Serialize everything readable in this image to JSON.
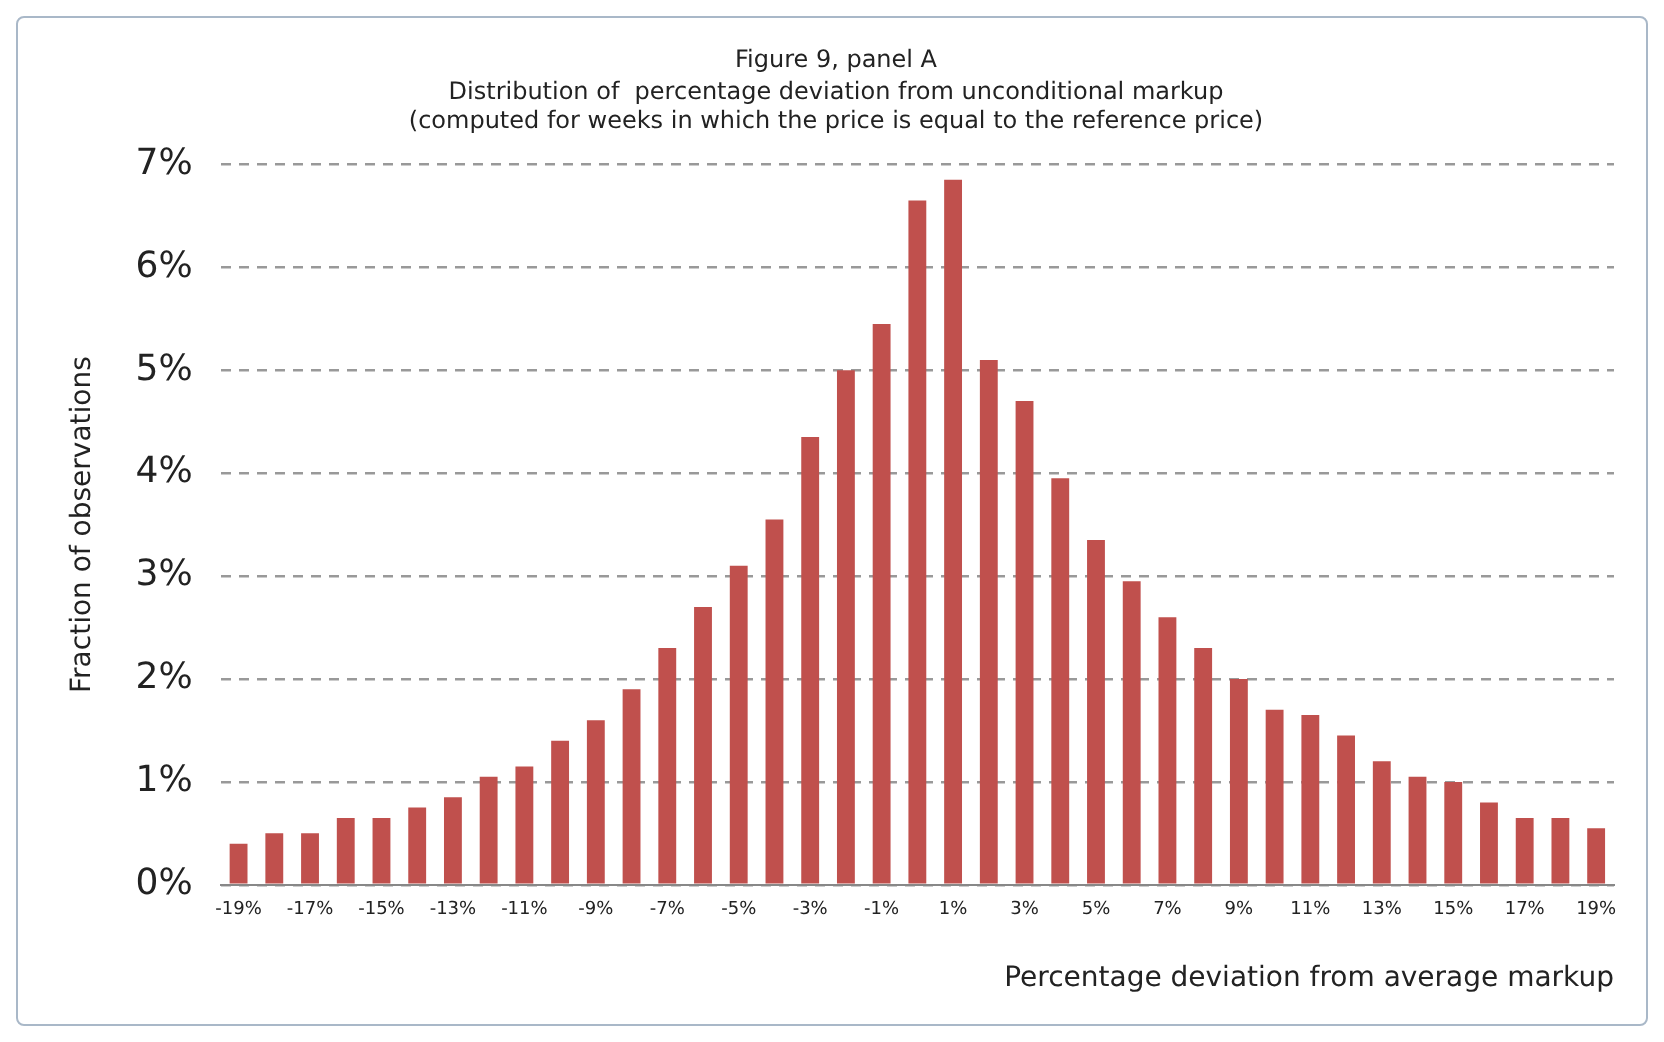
{
  "chart_data": {
    "type": "bar",
    "title": "Figure 9, panel A",
    "subtitle": "Distribution of  percentage deviation from unconditional markup\n(computed for weeks in which the price is equal to the reference price)",
    "xlabel": "Percentage deviation from average markup",
    "ylabel": "Fraction of observations",
    "categories": [
      "-19%",
      null,
      "-17%",
      null,
      "-15%",
      null,
      "-13%",
      null,
      "-11%",
      null,
      "-9%",
      null,
      "-7%",
      null,
      "-5%",
      null,
      "-3%",
      null,
      "-1%",
      null,
      "1%",
      null,
      "3%",
      null,
      "5%",
      null,
      "7%",
      null,
      "9%",
      null,
      "11%",
      null,
      "13%",
      null,
      "15%",
      null,
      "17%",
      null,
      "19%"
    ],
    "values": [
      0.4,
      0.5,
      0.5,
      0.65,
      0.65,
      0.75,
      0.85,
      1.05,
      1.15,
      1.4,
      1.6,
      1.9,
      2.3,
      2.7,
      3.1,
      3.55,
      4.35,
      5.0,
      5.45,
      6.65,
      6.85,
      5.1,
      4.7,
      3.95,
      3.35,
      2.95,
      2.6,
      2.3,
      2.0,
      1.7,
      1.65,
      1.45,
      1.2,
      1.05,
      1.0,
      0.8,
      0.65,
      0.65,
      0.55
    ],
    "color": "#c0504d",
    "ylim": [
      0,
      7
    ],
    "yticks": [
      {
        "value": 0,
        "label": "0%"
      },
      {
        "value": 1,
        "label": "1%"
      },
      {
        "value": 2,
        "label": "2%"
      },
      {
        "value": 3,
        "label": "3%"
      },
      {
        "value": 4,
        "label": "4%"
      },
      {
        "value": 5,
        "label": "5%"
      },
      {
        "value": 6,
        "label": "6%"
      },
      {
        "value": 7,
        "label": "7%"
      }
    ],
    "grid": "y",
    "legend": false
  }
}
